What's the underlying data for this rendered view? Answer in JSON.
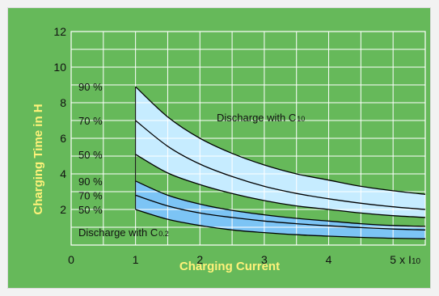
{
  "chart_data": {
    "type": "area",
    "xlabel": "Charging Current",
    "ylabel": "Charging Time in H",
    "xlim": [
      0,
      5.5
    ],
    "ylim": [
      0,
      12
    ],
    "x_ticks": [
      "0",
      "1",
      "2",
      "3",
      "4",
      "5"
    ],
    "x_unit_label": "x I",
    "x_unit_subscript": "10",
    "y_ticks": [
      "2",
      "4",
      "6",
      "8",
      "10",
      "12"
    ],
    "x_tick_values": [
      0,
      1,
      2,
      3,
      4,
      5
    ],
    "y_tick_values": [
      2,
      4,
      6,
      8,
      10,
      12
    ],
    "grid": true,
    "colors": {
      "background": "#66b95a",
      "grid": "#ffffff",
      "band_c10": "#c6ecff",
      "band_c02": "#7cc4f5",
      "curve": "#000000",
      "axis_title": "#fff27a"
    },
    "regions": [
      {
        "label": "Discharge with C",
        "subscript": "10",
        "upper": "C10 90 %",
        "lower": "C10 50 %"
      },
      {
        "label": "Discharge with C",
        "subscript": "0.2",
        "upper": "C0.2 90 %",
        "lower": "C0.2 50 %"
      }
    ],
    "series": [
      {
        "name": "C10 90 %",
        "label": "90 %",
        "x": [
          1,
          1.5,
          2,
          2.5,
          3,
          3.5,
          4,
          4.5,
          5,
          5.5
        ],
        "y": [
          8.9,
          7.2,
          6.0,
          5.15,
          4.5,
          4.0,
          3.65,
          3.3,
          3.05,
          2.85
        ]
      },
      {
        "name": "C10 70 %",
        "label": "70 %",
        "x": [
          1,
          1.5,
          2,
          2.5,
          3,
          3.5,
          4,
          4.5,
          5,
          5.5
        ],
        "y": [
          7.0,
          5.55,
          4.55,
          3.85,
          3.3,
          2.9,
          2.6,
          2.35,
          2.15,
          2.0
        ]
      },
      {
        "name": "C10 50 %",
        "label": "50 %",
        "x": [
          1,
          1.5,
          2,
          2.5,
          3,
          3.5,
          4,
          4.5,
          5,
          5.5
        ],
        "y": [
          5.1,
          4.05,
          3.4,
          2.9,
          2.5,
          2.2,
          2.0,
          1.8,
          1.65,
          1.55
        ]
      },
      {
        "name": "C0.2 90 %",
        "label": "90 %",
        "x": [
          1,
          1.5,
          2,
          2.5,
          3,
          3.5,
          4,
          4.5,
          5,
          5.5
        ],
        "y": [
          3.6,
          2.8,
          2.3,
          1.95,
          1.7,
          1.5,
          1.35,
          1.2,
          1.1,
          1.05
        ]
      },
      {
        "name": "C0.2 70 %",
        "label": "70 %",
        "x": [
          1,
          1.5,
          2,
          2.5,
          3,
          3.5,
          4,
          4.5,
          5,
          5.5
        ],
        "y": [
          2.8,
          2.2,
          1.8,
          1.55,
          1.35,
          1.2,
          1.08,
          0.98,
          0.9,
          0.85
        ]
      },
      {
        "name": "C0.2 50 %",
        "label": "50 %",
        "x": [
          1,
          1.5,
          2,
          2.5,
          3,
          3.5,
          4,
          4.5,
          5,
          5.5
        ],
        "y": [
          2.0,
          1.45,
          1.1,
          0.85,
          0.7,
          0.58,
          0.5,
          0.43,
          0.38,
          0.35
        ]
      }
    ]
  }
}
